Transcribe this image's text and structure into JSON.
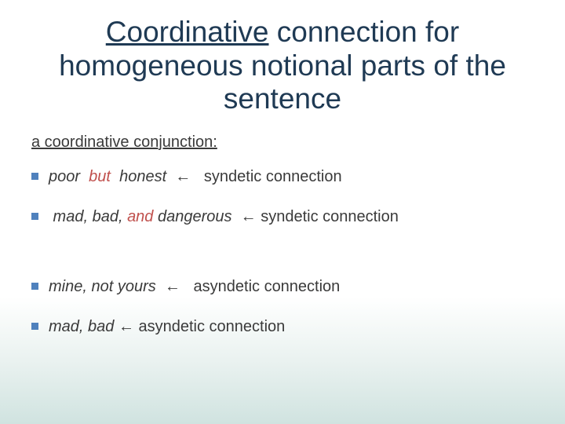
{
  "colors": {
    "title": "#1f3a54",
    "body": "#3a3a3a",
    "conj": "#c0504d",
    "bullet": "#4f81bd",
    "bg_top": "#ffffff",
    "bg_bottom": "#d0e3e0"
  },
  "fonts": {
    "title_size_pt": 28,
    "body_size_pt": 15,
    "subhead_size_pt": 15,
    "title_weight": "400"
  },
  "title": {
    "word_underlined": "Coordinative",
    "rest": " connection for homogeneous notional parts of the sentence"
  },
  "subhead": "a coordinative conjunction:",
  "arrow_glyph": "←",
  "items": [
    {
      "pre": "poor  ",
      "conj": "but",
      "post": "  honest  ",
      "arrow": "←",
      "tail": "   syndetic connection",
      "gap_after": false
    },
    {
      "pre": " mad, bad, ",
      "conj": "and",
      "post": " dangerous  ",
      "arrow": "←",
      "tail": " syndetic connection",
      "gap_after": true
    },
    {
      "pre": "mine, not yours  ",
      "conj": "",
      "post": "",
      "arrow": "←",
      "tail": "   asyndetic connection",
      "gap_after": false
    },
    {
      "pre": "mad, bad ",
      "conj": "",
      "post": "",
      "arrow": "←",
      "tail": " asyndetic connection",
      "gap_after": false
    }
  ]
}
